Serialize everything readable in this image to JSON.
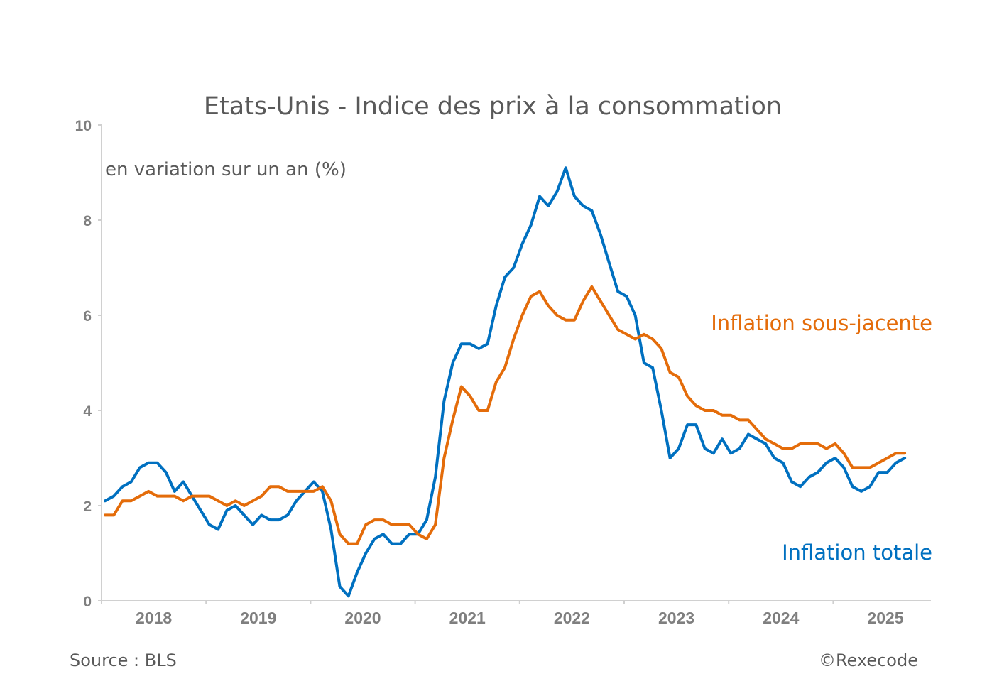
{
  "chart_data": {
    "type": "line",
    "title": "Etats-Unis - Indice des prix à la consommation",
    "subtitle": "en variation sur un an (%)",
    "xlabel": "",
    "ylabel": "",
    "ylim": [
      0,
      10
    ],
    "yticks": [
      0,
      2,
      4,
      6,
      8,
      10
    ],
    "xtick_labels": [
      "2018",
      "2019",
      "2020",
      "2021",
      "2022",
      "2023",
      "2024",
      "2025"
    ],
    "x_start": "2018-01",
    "x_end": "2025-08",
    "frequency": "monthly",
    "grid": false,
    "series": [
      {
        "name": "Inflation totale",
        "color": "#0070c0",
        "values": [
          2.1,
          2.2,
          2.4,
          2.5,
          2.8,
          2.9,
          2.9,
          2.7,
          2.3,
          2.5,
          2.2,
          1.9,
          1.6,
          1.5,
          1.9,
          2.0,
          1.8,
          1.6,
          1.8,
          1.7,
          1.7,
          1.8,
          2.1,
          2.3,
          2.5,
          2.3,
          1.5,
          0.3,
          0.1,
          0.6,
          1.0,
          1.3,
          1.4,
          1.2,
          1.2,
          1.4,
          1.4,
          1.7,
          2.6,
          4.2,
          5.0,
          5.4,
          5.4,
          5.3,
          5.4,
          6.2,
          6.8,
          7.0,
          7.5,
          7.9,
          8.5,
          8.3,
          8.6,
          9.1,
          8.5,
          8.3,
          8.2,
          7.7,
          7.1,
          6.5,
          6.4,
          6.0,
          5.0,
          4.9,
          4.0,
          3.0,
          3.2,
          3.7,
          3.7,
          3.2,
          3.1,
          3.4,
          3.1,
          3.2,
          3.5,
          3.4,
          3.3,
          3.0,
          2.9,
          2.5,
          2.4,
          2.6,
          2.7,
          2.9,
          3.0,
          2.8,
          2.4,
          2.3,
          2.4,
          2.7,
          2.7,
          2.9,
          3.0
        ]
      },
      {
        "name": "Inflation sous-jacente",
        "color": "#e46c0a",
        "values": [
          1.8,
          1.8,
          2.1,
          2.1,
          2.2,
          2.3,
          2.2,
          2.2,
          2.2,
          2.1,
          2.2,
          2.2,
          2.2,
          2.1,
          2.0,
          2.1,
          2.0,
          2.1,
          2.2,
          2.4,
          2.4,
          2.3,
          2.3,
          2.3,
          2.3,
          2.4,
          2.1,
          1.4,
          1.2,
          1.2,
          1.6,
          1.7,
          1.7,
          1.6,
          1.6,
          1.6,
          1.4,
          1.3,
          1.6,
          3.0,
          3.8,
          4.5,
          4.3,
          4.0,
          4.0,
          4.6,
          4.9,
          5.5,
          6.0,
          6.4,
          6.5,
          6.2,
          6.0,
          5.9,
          5.9,
          6.3,
          6.6,
          6.3,
          6.0,
          5.7,
          5.6,
          5.5,
          5.6,
          5.5,
          5.3,
          4.8,
          4.7,
          4.3,
          4.1,
          4.0,
          4.0,
          3.9,
          3.9,
          3.8,
          3.8,
          3.6,
          3.4,
          3.3,
          3.2,
          3.2,
          3.3,
          3.3,
          3.3,
          3.2,
          3.3,
          3.1,
          2.8,
          2.8,
          2.8,
          2.9,
          3.0,
          3.1,
          3.1
        ]
      }
    ],
    "legend": [
      {
        "label": "Inflation sous-jacente",
        "color": "#e46c0a",
        "placement": "right, above lines"
      },
      {
        "label": "Inflation totale",
        "color": "#0070c0",
        "placement": "bottom-right"
      }
    ],
    "source": "Source : BLS",
    "copyright": "©Rexecode"
  }
}
